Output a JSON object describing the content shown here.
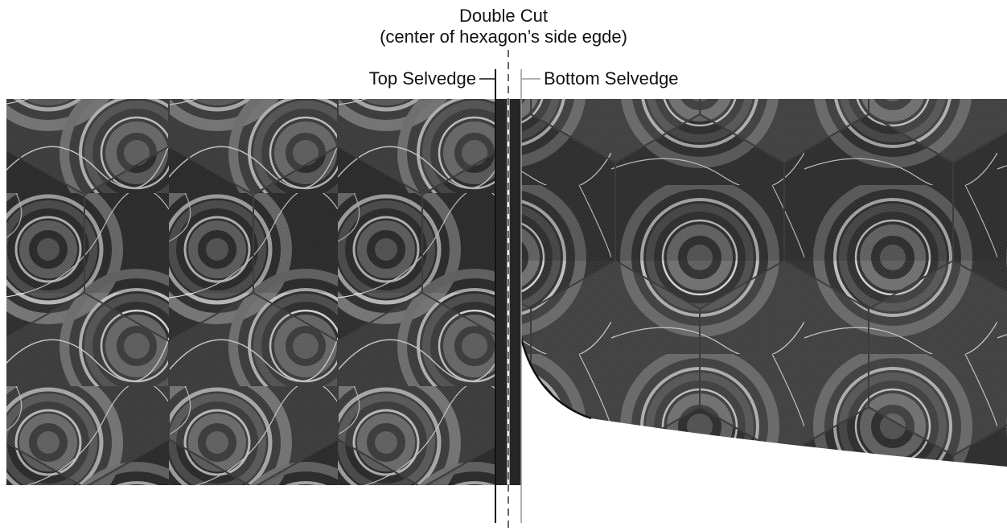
{
  "labels": {
    "title": "Double Cut",
    "subtitle": "(center of hexagon’s side egde)",
    "top_selvedge": "Top Selvedge",
    "bottom_selvedge": "Bottom Selvedge"
  },
  "colors": {
    "background": "#ffffff",
    "fabric_dark": "#2e2e2e",
    "fabric_mid": "#5a5a5a",
    "fabric_light": "#8a8a8a",
    "ring_light": "#bdbdbd",
    "line": "#111111"
  },
  "pattern": {
    "name": "agate-hexagon-print",
    "icons": [
      "hexagon-tile-icon",
      "agate-ring-icon"
    ]
  }
}
